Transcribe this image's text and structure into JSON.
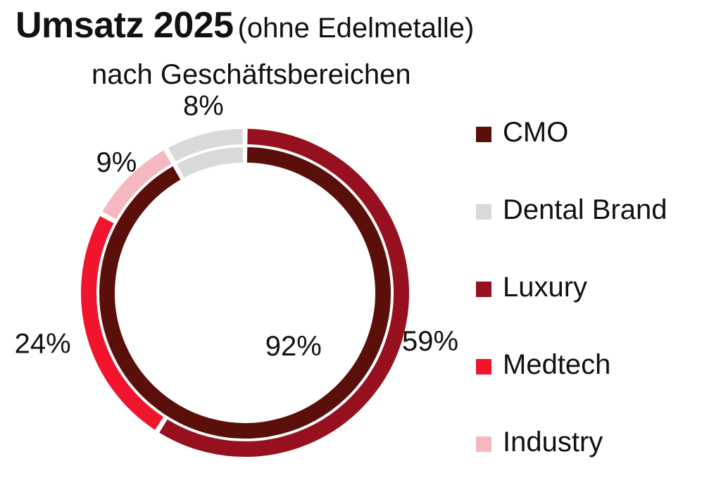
{
  "chart_data": {
    "type": "pie",
    "title": "Umsatz 2025",
    "title_note": "(ohne Edelmetalle)",
    "subtitle": "nach Geschäftsbereichen",
    "legend": [
      {
        "name": "CMO",
        "color": "#5a0f0a"
      },
      {
        "name": "Dental Brand",
        "color": "#d9d9d9"
      },
      {
        "name": "Luxury",
        "color": "#96101f"
      },
      {
        "name": "Medtech",
        "color": "#f0142d"
      },
      {
        "name": "Industry",
        "color": "#f5b8c0"
      }
    ],
    "rings": [
      {
        "name": "inner",
        "slices": [
          {
            "category": "CMO",
            "value": 92,
            "label": "92%"
          },
          {
            "category": "Dental Brand",
            "value": 8,
            "label": ""
          }
        ]
      },
      {
        "name": "outer",
        "slices": [
          {
            "category": "Luxury",
            "value": 59,
            "label": "59%"
          },
          {
            "category": "Medtech",
            "value": 24,
            "label": "24%"
          },
          {
            "category": "Industry",
            "value": 9,
            "label": "9%"
          },
          {
            "category": "Dental Brand",
            "value": 8,
            "label": "8%"
          }
        ]
      }
    ]
  }
}
